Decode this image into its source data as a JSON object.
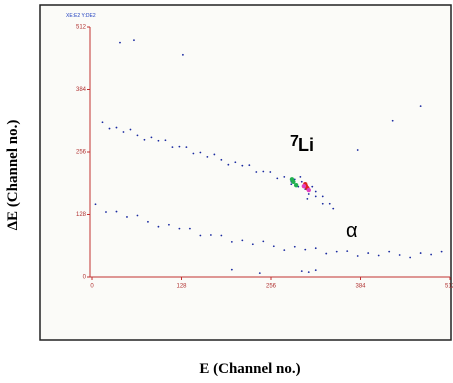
{
  "chart_data": {
    "type": "scatter",
    "corner_label": "XE:E2 Y:DE2",
    "xlabel": "E  (Channel no.)",
    "ylabel": "ΔE  (Channel no.)",
    "annotations": [
      "7",
      "Li",
      "α"
    ],
    "xlim": [
      0,
      512
    ],
    "ylim": [
      0,
      512
    ],
    "xticks": [
      0,
      128,
      256,
      384,
      512
    ],
    "yticks": [
      0,
      128,
      256,
      384,
      512
    ],
    "axis_color": "#c03030",
    "series": [
      {
        "color": "#1a2aa0",
        "x": [
          15,
          25,
          35,
          45,
          55,
          65,
          75,
          85,
          95,
          105,
          115,
          125,
          135,
          145,
          155,
          165,
          175,
          185,
          195,
          205,
          215,
          225,
          235,
          245,
          255,
          265,
          275,
          285,
          320,
          330,
          340,
          345,
          330,
          5,
          20,
          35,
          50,
          65,
          80,
          95,
          110,
          125,
          140,
          155,
          170,
          185,
          200,
          215,
          230,
          245,
          260,
          275,
          290,
          305,
          320,
          335,
          350,
          365,
          380,
          395,
          410,
          425,
          440,
          455,
          470,
          485,
          500,
          290,
          295,
          300,
          305,
          310,
          298,
          285,
          315,
          308,
          320,
          300,
          310,
          320,
          200,
          240,
          380,
          430,
          470,
          40,
          60,
          130
        ],
        "values": [
          317,
          304,
          306,
          297,
          302,
          290,
          281,
          286,
          279,
          280,
          266,
          267,
          266,
          253,
          255,
          246,
          251,
          240,
          230,
          235,
          228,
          229,
          215,
          216,
          215,
          202,
          205,
          195,
          175,
          165,
          150,
          140,
          150,
          149,
          133,
          134,
          123,
          126,
          113,
          103,
          107,
          99,
          99,
          85,
          86,
          85,
          72,
          75,
          67,
          73,
          63,
          55,
          62,
          56,
          59,
          48,
          52,
          53,
          43,
          49,
          44,
          52,
          45,
          40,
          49,
          46,
          52,
          200,
          185,
          195,
          180,
          170,
          205,
          190,
          185,
          160,
          165,
          12,
          10,
          14,
          15,
          8,
          260,
          320,
          350,
          480,
          485,
          455
        ]
      },
      {
        "color": "#20b050",
        "x": [
          288,
          292,
          286
        ],
        "values": [
          195,
          188,
          200
        ]
      },
      {
        "color": "#e02020",
        "x": [
          305,
          308,
          306
        ],
        "values": [
          190,
          182,
          186
        ]
      },
      {
        "color": "#e040c0",
        "x": [
          303,
          310
        ],
        "values": [
          186,
          178
        ]
      }
    ]
  }
}
